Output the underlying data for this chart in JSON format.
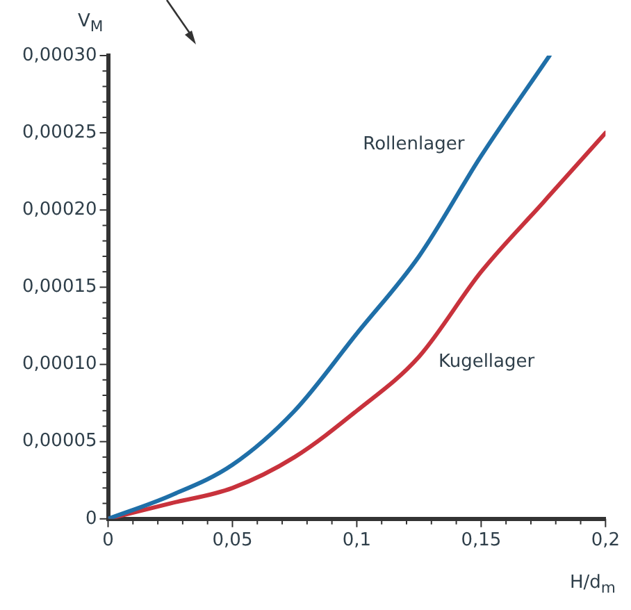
{
  "chart_data": {
    "type": "line",
    "xlabel": "H/d$_{m}$",
    "ylabel": "V$_{M}$",
    "xlim": [
      0,
      0.2
    ],
    "xticks": [
      {
        "value": 0,
        "label": "0"
      },
      {
        "value": 0.01,
        "label": null
      },
      {
        "value": 0.02,
        "label": null
      },
      {
        "value": 0.03,
        "label": null
      },
      {
        "value": 0.04,
        "label": null
      },
      {
        "value": 0.05,
        "label": "0,05"
      },
      {
        "value": 0.06,
        "label": null
      },
      {
        "value": 0.07,
        "label": null
      },
      {
        "value": 0.08,
        "label": null
      },
      {
        "value": 0.09,
        "label": null
      },
      {
        "value": 0.1,
        "label": "0,1"
      },
      {
        "value": 0.11,
        "label": null
      },
      {
        "value": 0.12,
        "label": null
      },
      {
        "value": 0.13,
        "label": null
      },
      {
        "value": 0.14,
        "label": null
      },
      {
        "value": 0.15,
        "label": "0,15"
      },
      {
        "value": 0.16,
        "label": null
      },
      {
        "value": 0.17,
        "label": null
      },
      {
        "value": 0.18,
        "label": null
      },
      {
        "value": 0.19,
        "label": null
      },
      {
        "value": 0.2,
        "label": "0,2"
      }
    ],
    "ylim": [
      0,
      0.0003
    ],
    "yticks": [
      {
        "value": 0,
        "label": "0"
      },
      {
        "value": 1e-05,
        "label": null
      },
      {
        "value": 2e-05,
        "label": null
      },
      {
        "value": 3e-05,
        "label": null
      },
      {
        "value": 4e-05,
        "label": null
      },
      {
        "value": 5e-05,
        "label": "0,00005"
      },
      {
        "value": 6e-05,
        "label": null
      },
      {
        "value": 7e-05,
        "label": null
      },
      {
        "value": 8e-05,
        "label": null
      },
      {
        "value": 9e-05,
        "label": null
      },
      {
        "value": 0.0001,
        "label": "0,00010"
      },
      {
        "value": 0.00011,
        "label": null
      },
      {
        "value": 0.00012,
        "label": null
      },
      {
        "value": 0.00013,
        "label": null
      },
      {
        "value": 0.00014,
        "label": null
      },
      {
        "value": 0.00015,
        "label": "0,00015"
      },
      {
        "value": 0.00016,
        "label": null
      },
      {
        "value": 0.00017,
        "label": null
      },
      {
        "value": 0.00018,
        "label": null
      },
      {
        "value": 0.00019,
        "label": null
      },
      {
        "value": 0.0002,
        "label": "0,00020"
      },
      {
        "value": 0.00021,
        "label": null
      },
      {
        "value": 0.00022,
        "label": null
      },
      {
        "value": 0.00023,
        "label": null
      },
      {
        "value": 0.00024,
        "label": null
      },
      {
        "value": 0.00025,
        "label": "0,00025"
      },
      {
        "value": 0.00026,
        "label": null
      },
      {
        "value": 0.00027,
        "label": null
      },
      {
        "value": 0.00028,
        "label": null
      },
      {
        "value": 0.00029,
        "label": null
      },
      {
        "value": 0.0003,
        "label": "0,00030"
      }
    ],
    "grid": false,
    "legend": false,
    "marker": "none",
    "line_style": "solid",
    "series": [
      {
        "name": "Rollenlager",
        "color": "#1f6fa8",
        "x": [
          0,
          0.025,
          0.05,
          0.075,
          0.1,
          0.125,
          0.15,
          0.1775
        ],
        "values": [
          0,
          1.5e-05,
          3.5e-05,
          7e-05,
          0.00012,
          0.00017,
          0.000235,
          0.0003
        ]
      },
      {
        "name": "Kugellager",
        "color": "#c8323c",
        "x": [
          0,
          0.025,
          0.05,
          0.075,
          0.1,
          0.125,
          0.15,
          0.175,
          0.2
        ],
        "values": [
          0,
          1e-05,
          2e-05,
          4e-05,
          7e-05,
          0.000105,
          0.00016,
          0.000205,
          0.00025
        ]
      }
    ]
  }
}
